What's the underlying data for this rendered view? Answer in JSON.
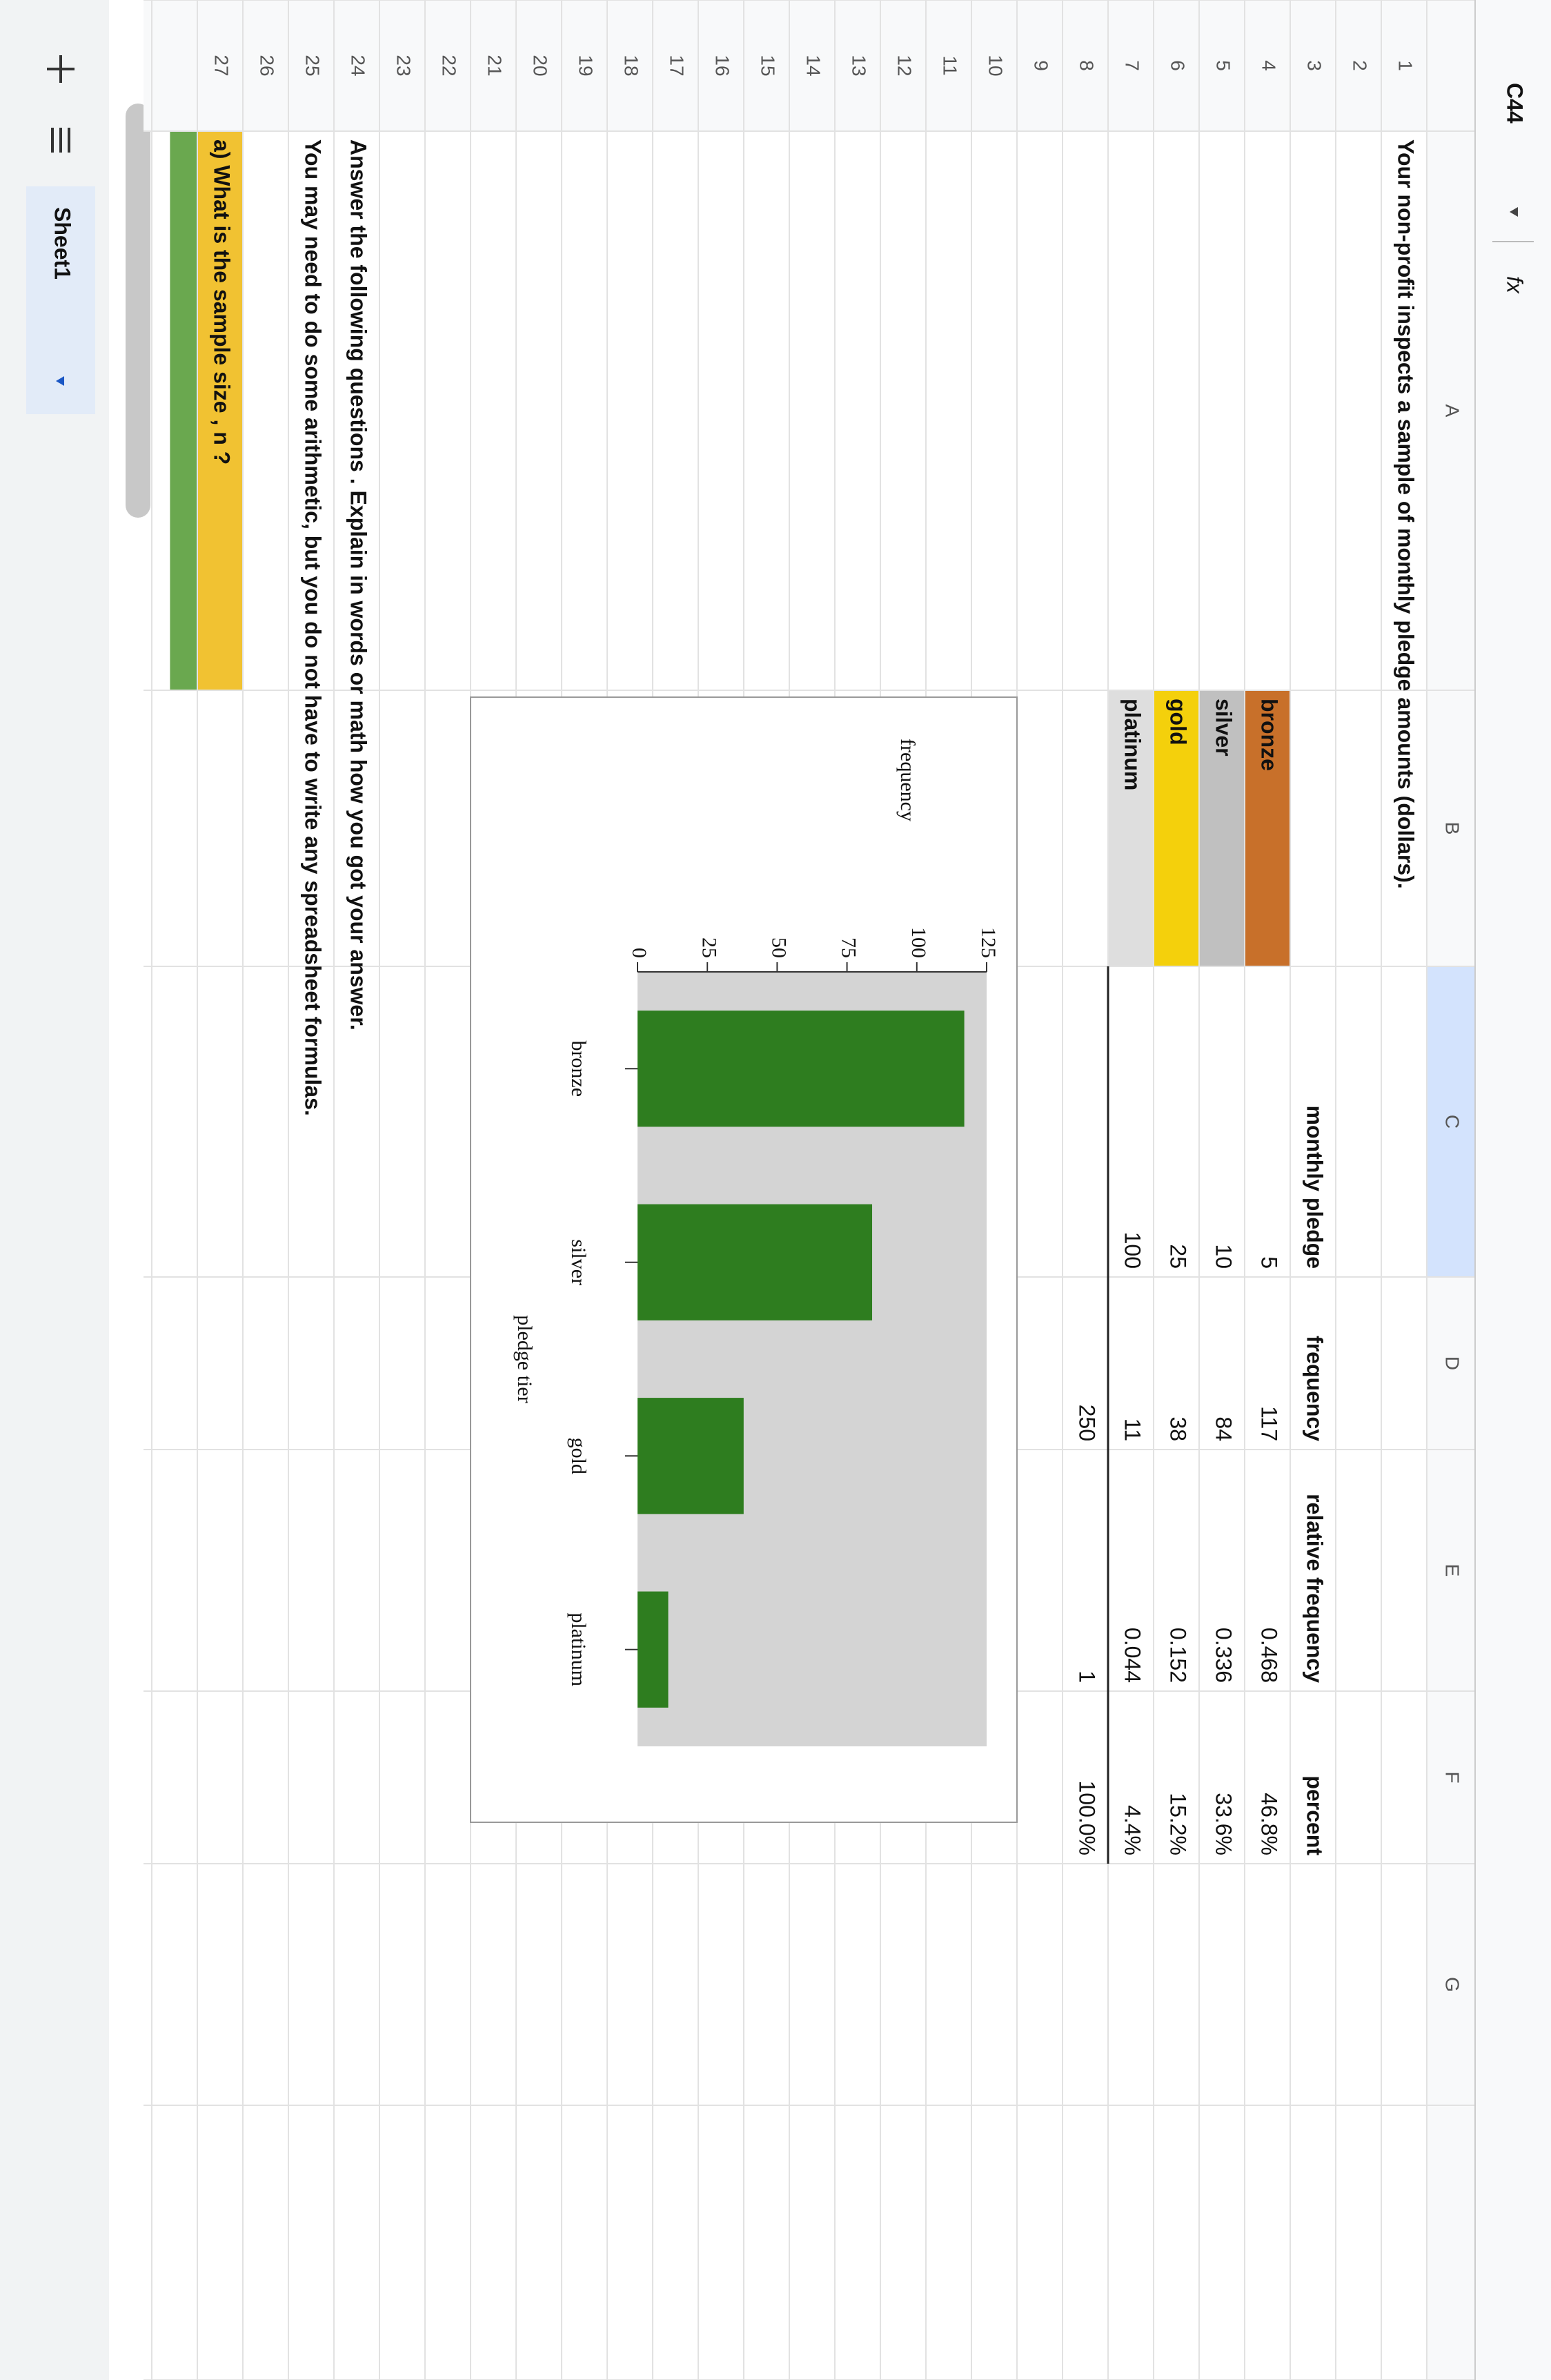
{
  "formula_bar": {
    "name_box": "C44",
    "fx": "fx"
  },
  "column_letters": [
    "A",
    "B",
    "C",
    "D",
    "E",
    "F",
    "G"
  ],
  "row_numbers": [
    1,
    2,
    3,
    4,
    5,
    6,
    7,
    8,
    9,
    10,
    11,
    12,
    13,
    14,
    15,
    16,
    17,
    18,
    19,
    20,
    21,
    22,
    23,
    24,
    25,
    26,
    27
  ],
  "title": "Your non-profit inspects a sample of monthly pledge amounts (dollars).",
  "table": {
    "header": [
      "monthly pledge",
      "frequency",
      "relative frequency",
      "percent"
    ],
    "rows": [
      {
        "tier": "bronze",
        "pledge": 5,
        "frequency": 117,
        "relative": 0.468,
        "percent": "46.8%"
      },
      {
        "tier": "silver",
        "pledge": 10,
        "frequency": 84,
        "relative": 0.336,
        "percent": "33.6%"
      },
      {
        "tier": "gold",
        "pledge": 25,
        "frequency": 38,
        "relative": 0.152,
        "percent": "15.2%"
      },
      {
        "tier": "platinum",
        "pledge": 100,
        "frequency": 11,
        "relative": 0.044,
        "percent": "4.4%"
      }
    ],
    "totals": {
      "frequency": 250,
      "relative": 1,
      "percent": "100.0%"
    }
  },
  "questions": [
    "Answer the following questions . Explain in words or math how you got your answer.",
    "You may need to do some arithmetic, but you do not have to write any spreadsheet formulas.",
    "a) What is the sample size , n ?"
  ],
  "sheet_tab": "Sheet1",
  "chart_data": {
    "type": "bar",
    "categories": [
      "bronze",
      "silver",
      "gold",
      "platinum"
    ],
    "values": [
      117,
      84,
      38,
      11
    ],
    "color": "#2e7d1f",
    "ylim": [
      0,
      125
    ],
    "yticks": [
      0,
      25,
      50,
      75,
      100,
      125
    ],
    "xlabel": "pledge tier",
    "ylabel": "frequency"
  }
}
